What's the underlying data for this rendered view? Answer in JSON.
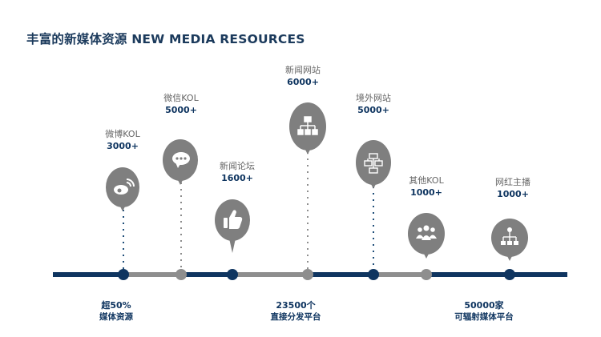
{
  "title": "丰富的新媒体资源 NEW MEDIA RESOURCES",
  "colors": {
    "navy": "#0f3560",
    "gray": "#8e8e8e",
    "pin": "#7f7f7f",
    "dots_navy": "#1f4e79"
  },
  "resources": [
    {
      "name": "微博KOL",
      "count": "3000+",
      "icon": "weibo-icon"
    },
    {
      "name": "微信KOL",
      "count": "5000+",
      "icon": "wechat-chat-icon"
    },
    {
      "name": "新闻论坛",
      "count": "1600+",
      "icon": "thumbs-up-icon"
    },
    {
      "name": "新闻网站",
      "count": "6000+",
      "icon": "sitemap-icon"
    },
    {
      "name": "境外网站",
      "count": "5000+",
      "icon": "network-icon"
    },
    {
      "name": "其他KOL",
      "count": "1000+",
      "icon": "group-icon"
    },
    {
      "name": "网红主播",
      "count": "1000+",
      "icon": "hierarchy-icon"
    }
  ],
  "stats": [
    {
      "big": "超50%",
      "small": "媒体资源"
    },
    {
      "big": "23500个",
      "small": "直接分发平台"
    },
    {
      "big": "50000家",
      "small": "可辐射媒体平台"
    }
  ]
}
